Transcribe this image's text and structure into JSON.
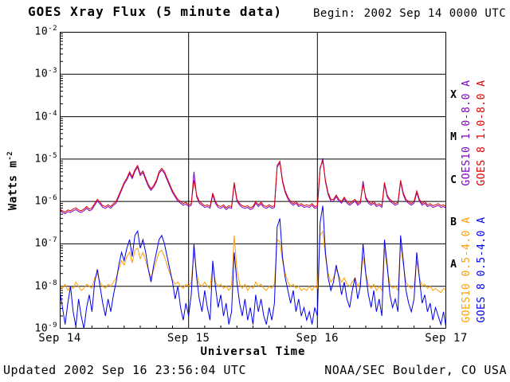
{
  "header": {
    "title": "GOES Xray Flux (5 minute data)",
    "begin_label": "Begin:",
    "begin_value": "2002 Sep 14 0000 UTC"
  },
  "footer": {
    "updated": "Updated 2002 Sep 16 23:56:04 UTC",
    "credit": "NOAA/SEC Boulder, CO USA"
  },
  "axes": {
    "y_label": {
      "text": "Watts m",
      "sup": "-2"
    },
    "x_label": "Universal Time",
    "y_tick_base": "10",
    "y_tick_exponents": [
      -2,
      -3,
      -4,
      -5,
      -6,
      -7,
      -8,
      -9
    ],
    "x_ticks": [
      {
        "hour": 0,
        "label": "Sep 14"
      },
      {
        "hour": 24,
        "label": "Sep 15"
      },
      {
        "hour": 48,
        "label": "Sep 16"
      },
      {
        "hour": 72,
        "label": "Sep 17"
      }
    ]
  },
  "flare_classes": [
    {
      "label": "X",
      "center_exp": -3.5
    },
    {
      "label": "M",
      "center_exp": -4.5
    },
    {
      "label": "C",
      "center_exp": -5.5
    },
    {
      "label": "B",
      "center_exp": -6.5
    },
    {
      "label": "A",
      "center_exp": -7.5
    }
  ],
  "legend": [
    {
      "text": "GOES10 1.0-8.0 A",
      "color": "#8000c0"
    },
    {
      "text": "GOES 8 1.0-8.0 A",
      "color": "#dd0000"
    },
    {
      "text": "GOES10 0.5-4.0 A",
      "color": "#ffa000"
    },
    {
      "text": "GOES 8 0.5-4.0 A",
      "color": "#0000ee"
    }
  ],
  "chart_data": {
    "type": "line",
    "title": "GOES Xray Flux (5 minute data)",
    "xlabel": "Universal Time",
    "ylabel": "Watts m^-2",
    "y_scale": "log10",
    "ylim_exp": [
      -9,
      -2
    ],
    "grid_decades": [
      -3,
      -4,
      -5,
      -6,
      -7,
      -8
    ],
    "day_lines_hours": [
      24,
      48
    ],
    "x_start_hour": 0,
    "x_step_hours": 0.5,
    "x_range_hours": 72,
    "series": [
      {
        "name": "GOES10 1.0-8.0 A",
        "color": "#8000c0",
        "log10_watts": [
          -6.22,
          -6.26,
          -6.29,
          -6.24,
          -6.26,
          -6.22,
          -6.19,
          -6.24,
          -6.26,
          -6.22,
          -6.16,
          -6.22,
          -6.19,
          -6.09,
          -5.99,
          -6.06,
          -6.14,
          -6.16,
          -6.12,
          -6.16,
          -6.09,
          -6.04,
          -5.89,
          -5.74,
          -5.59,
          -5.49,
          -5.34,
          -5.46,
          -5.29,
          -5.19,
          -5.39,
          -5.32,
          -5.49,
          -5.64,
          -5.74,
          -5.66,
          -5.54,
          -5.34,
          -5.26,
          -5.34,
          -5.49,
          -5.64,
          -5.79,
          -5.89,
          -5.99,
          -6.04,
          -6.09,
          -6.06,
          -6.12,
          -6.09,
          -5.3,
          -5.89,
          -6.04,
          -6.09,
          -6.14,
          -6.12,
          -6.16,
          -5.84,
          -6.04,
          -6.14,
          -6.16,
          -6.12,
          -6.19,
          -6.14,
          -6.16,
          -5.59,
          -5.99,
          -6.09,
          -6.14,
          -6.16,
          -6.14,
          -6.19,
          -6.16,
          -6.04,
          -6.12,
          -6.06,
          -6.14,
          -6.16,
          -6.12,
          -6.16,
          -6.14,
          -5.19,
          -5.09,
          -5.54,
          -5.79,
          -5.94,
          -6.04,
          -6.09,
          -6.04,
          -6.12,
          -6.09,
          -6.14,
          -6.12,
          -6.14,
          -6.09,
          -6.16,
          -6.14,
          -5.24,
          -4.98,
          -5.54,
          -5.84,
          -5.99,
          -5.99,
          -5.89,
          -5.99,
          -6.04,
          -5.94,
          -6.04,
          -6.09,
          -6.04,
          -5.99,
          -6.09,
          -6.04,
          -5.52,
          -5.94,
          -6.04,
          -6.09,
          -6.04,
          -6.12,
          -6.09,
          -6.14,
          -5.59,
          -5.89,
          -5.99,
          -6.04,
          -6.09,
          -6.06,
          -5.54,
          -5.84,
          -5.99,
          -6.04,
          -6.09,
          -6.04,
          -5.79,
          -5.99,
          -6.09,
          -6.04,
          -6.12,
          -6.09,
          -6.14,
          -6.12,
          -6.09,
          -6.14,
          -6.12,
          -6.16
        ]
      },
      {
        "name": "GOES 8 1.0-8.0 A",
        "color": "#dd0000",
        "log10_watts": [
          -6.18,
          -6.22,
          -6.25,
          -6.2,
          -6.22,
          -6.18,
          -6.15,
          -6.2,
          -6.22,
          -6.18,
          -6.12,
          -6.18,
          -6.15,
          -6.05,
          -5.95,
          -6.02,
          -6.1,
          -6.12,
          -6.08,
          -6.12,
          -6.05,
          -6.0,
          -5.85,
          -5.7,
          -5.55,
          -5.45,
          -5.3,
          -5.42,
          -5.25,
          -5.15,
          -5.35,
          -5.28,
          -5.45,
          -5.6,
          -5.7,
          -5.62,
          -5.5,
          -5.3,
          -5.22,
          -5.3,
          -5.45,
          -5.6,
          -5.75,
          -5.85,
          -5.95,
          -6.0,
          -6.05,
          -6.02,
          -6.08,
          -6.05,
          -5.5,
          -5.85,
          -6.0,
          -6.05,
          -6.1,
          -6.08,
          -6.12,
          -5.8,
          -6.0,
          -6.1,
          -6.12,
          -6.08,
          -6.15,
          -6.1,
          -6.12,
          -5.55,
          -5.95,
          -6.05,
          -6.1,
          -6.12,
          -6.1,
          -6.15,
          -6.12,
          -6.0,
          -6.08,
          -6.02,
          -6.1,
          -6.12,
          -6.08,
          -6.12,
          -6.1,
          -5.15,
          -5.05,
          -5.5,
          -5.75,
          -5.9,
          -6.0,
          -6.05,
          -6.0,
          -6.08,
          -6.05,
          -6.1,
          -6.08,
          -6.1,
          -6.05,
          -6.12,
          -6.1,
          -5.2,
          -5.05,
          -5.5,
          -5.8,
          -5.95,
          -5.95,
          -5.85,
          -5.95,
          -6.0,
          -5.9,
          -6.0,
          -6.05,
          -6.0,
          -5.95,
          -6.05,
          -6.0,
          -5.6,
          -5.9,
          -6.0,
          -6.05,
          -6.0,
          -6.08,
          -6.05,
          -6.1,
          -5.55,
          -5.85,
          -5.95,
          -6.0,
          -6.05,
          -6.02,
          -5.5,
          -5.8,
          -5.95,
          -6.0,
          -6.05,
          -6.0,
          -5.75,
          -5.95,
          -6.05,
          -6.0,
          -6.08,
          -6.05,
          -6.1,
          -6.08,
          -6.05,
          -6.1,
          -6.08,
          -6.12
        ]
      },
      {
        "name": "GOES10 0.5-4.0 A",
        "color": "#ffa000",
        "log10_watts": [
          -8.0,
          -8.05,
          -7.95,
          -8.1,
          -8.0,
          -8.05,
          -7.9,
          -8.0,
          -8.1,
          -8.05,
          -7.95,
          -8.0,
          -8.05,
          -7.8,
          -7.7,
          -7.9,
          -8.0,
          -8.05,
          -7.95,
          -8.0,
          -7.9,
          -7.8,
          -7.6,
          -7.4,
          -7.5,
          -7.3,
          -7.2,
          -7.45,
          -7.15,
          -7.1,
          -7.35,
          -7.2,
          -7.4,
          -7.6,
          -7.8,
          -7.6,
          -7.4,
          -7.2,
          -7.15,
          -7.3,
          -7.5,
          -7.7,
          -7.85,
          -7.95,
          -7.9,
          -8.0,
          -8.05,
          -7.95,
          -8.0,
          -7.9,
          -7.2,
          -7.7,
          -7.95,
          -8.0,
          -7.9,
          -8.0,
          -8.05,
          -7.5,
          -7.9,
          -8.0,
          -7.95,
          -8.05,
          -8.0,
          -8.1,
          -8.0,
          -6.8,
          -7.6,
          -7.95,
          -8.05,
          -7.95,
          -8.1,
          -8.0,
          -8.05,
          -7.9,
          -8.0,
          -7.95,
          -8.05,
          -8.1,
          -8.0,
          -8.05,
          -7.95,
          -6.9,
          -6.95,
          -7.4,
          -7.7,
          -7.9,
          -8.0,
          -7.95,
          -8.05,
          -8.0,
          -8.1,
          -8.05,
          -8.1,
          -8.0,
          -8.1,
          -8.0,
          -8.05,
          -6.8,
          -6.7,
          -7.3,
          -7.7,
          -7.9,
          -7.8,
          -7.6,
          -7.75,
          -7.9,
          -7.8,
          -7.95,
          -8.0,
          -7.9,
          -7.8,
          -8.0,
          -7.9,
          -7.3,
          -7.7,
          -7.95,
          -8.05,
          -7.95,
          -8.1,
          -8.0,
          -8.1,
          -7.1,
          -7.6,
          -7.95,
          -8.05,
          -8.0,
          -8.1,
          -7.0,
          -7.5,
          -7.9,
          -8.0,
          -8.05,
          -8.0,
          -7.4,
          -7.8,
          -8.0,
          -7.95,
          -8.05,
          -8.0,
          -8.1,
          -8.05,
          -8.1,
          -8.15,
          -8.05,
          -8.1
        ]
      },
      {
        "name": "GOES 8 0.5-4.0 A",
        "color": "#0000ee",
        "log10_watts": [
          -8.1,
          -8.5,
          -8.9,
          -8.4,
          -8.0,
          -8.6,
          -8.95,
          -8.3,
          -8.7,
          -9.0,
          -8.5,
          -8.2,
          -8.6,
          -7.9,
          -7.6,
          -8.0,
          -8.4,
          -8.7,
          -8.3,
          -8.6,
          -8.2,
          -7.9,
          -7.5,
          -7.2,
          -7.4,
          -7.1,
          -6.9,
          -7.3,
          -6.8,
          -6.7,
          -7.1,
          -6.9,
          -7.2,
          -7.6,
          -7.9,
          -7.5,
          -7.2,
          -6.9,
          -6.8,
          -7.0,
          -7.3,
          -7.6,
          -7.9,
          -8.3,
          -8.0,
          -8.5,
          -8.8,
          -8.4,
          -8.7,
          -8.2,
          -7.0,
          -7.8,
          -8.3,
          -8.6,
          -8.1,
          -8.5,
          -8.8,
          -7.4,
          -8.0,
          -8.5,
          -8.2,
          -8.7,
          -8.4,
          -8.9,
          -8.6,
          -7.2,
          -7.9,
          -8.4,
          -8.7,
          -8.3,
          -8.8,
          -8.5,
          -8.9,
          -8.2,
          -8.6,
          -8.3,
          -8.7,
          -8.9,
          -8.5,
          -8.8,
          -8.4,
          -6.6,
          -6.4,
          -7.3,
          -7.8,
          -8.1,
          -8.4,
          -8.1,
          -8.6,
          -8.3,
          -8.7,
          -8.5,
          -8.8,
          -8.6,
          -8.9,
          -8.5,
          -8.7,
          -6.5,
          -6.1,
          -7.2,
          -7.8,
          -8.1,
          -7.9,
          -7.5,
          -7.8,
          -8.2,
          -7.9,
          -8.3,
          -8.5,
          -8.1,
          -7.8,
          -8.3,
          -8.0,
          -7.0,
          -7.7,
          -8.2,
          -8.5,
          -8.1,
          -8.6,
          -8.3,
          -8.7,
          -6.9,
          -7.5,
          -8.2,
          -8.5,
          -8.3,
          -8.6,
          -6.8,
          -7.4,
          -8.1,
          -8.4,
          -8.6,
          -8.3,
          -7.2,
          -7.8,
          -8.4,
          -8.2,
          -8.6,
          -8.4,
          -8.8,
          -8.5,
          -8.7,
          -8.9,
          -8.6,
          -9.0
        ]
      }
    ]
  }
}
